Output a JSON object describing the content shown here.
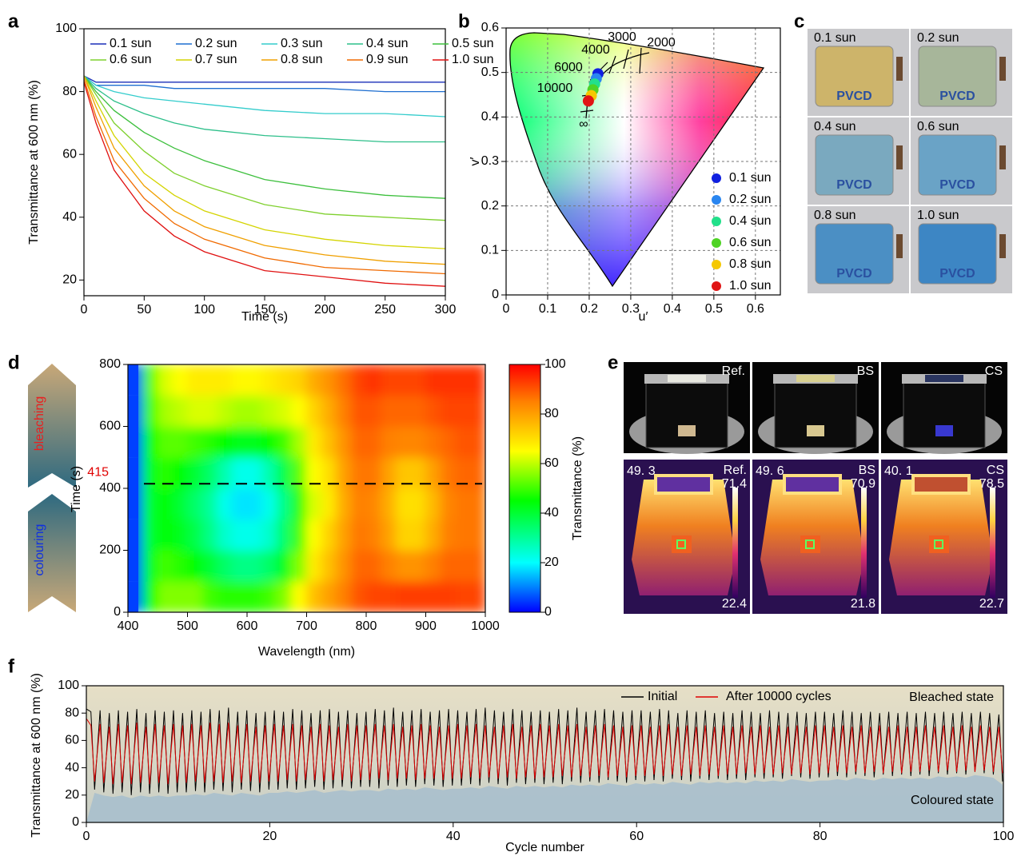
{
  "panel_labels": [
    "a",
    "b",
    "c",
    "d",
    "e",
    "f"
  ],
  "chart_data": [
    {
      "type": "line",
      "x_label": "Time (s)",
      "y_label": "Transmittance at 600 nm (%)",
      "x": [
        0,
        10,
        25,
        50,
        75,
        100,
        150,
        200,
        250,
        300
      ],
      "series": [
        {
          "name": "0.1 sun",
          "color": "#1a2fb8",
          "values": [
            85,
            83,
            83,
            83,
            83,
            83,
            83,
            83,
            83,
            83
          ]
        },
        {
          "name": "0.2 sun",
          "color": "#1f6fd0",
          "values": [
            85,
            82,
            82,
            82,
            81,
            81,
            81,
            81,
            80,
            80
          ]
        },
        {
          "name": "0.3 sun",
          "color": "#33cccc",
          "values": [
            85,
            82,
            80,
            78,
            77,
            76,
            74,
            73,
            73,
            72
          ]
        },
        {
          "name": "0.4 sun",
          "color": "#2dbf8a",
          "values": [
            85,
            81,
            77,
            73,
            70,
            68,
            66,
            65,
            64,
            64
          ]
        },
        {
          "name": "0.5 sun",
          "color": "#3cbf3c",
          "values": [
            85,
            80,
            74,
            67,
            62,
            58,
            52,
            49,
            47,
            46
          ]
        },
        {
          "name": "0.6 sun",
          "color": "#7fd02e",
          "values": [
            85,
            79,
            70,
            61,
            54,
            50,
            44,
            41,
            40,
            39
          ]
        },
        {
          "name": "0.7 sun",
          "color": "#d4d400",
          "values": [
            85,
            77,
            66,
            54,
            47,
            42,
            36,
            33,
            31,
            30
          ]
        },
        {
          "name": "0.8 sun",
          "color": "#f0a000",
          "values": [
            85,
            75,
            62,
            50,
            42,
            37,
            31,
            28,
            26,
            25
          ]
        },
        {
          "name": "0.9 sun",
          "color": "#f06a00",
          "values": [
            84,
            72,
            58,
            46,
            38,
            33,
            27,
            24,
            23,
            22
          ]
        },
        {
          "name": "1.0 sun",
          "color": "#e01010",
          "values": [
            83,
            70,
            55,
            42,
            34,
            29,
            23,
            21,
            19,
            18
          ]
        }
      ],
      "xlim": [
        0,
        300
      ],
      "ylim": [
        15,
        100
      ],
      "xticks": [
        0,
        50,
        100,
        150,
        200,
        250,
        300
      ],
      "yticks": [
        20,
        40,
        60,
        80,
        100
      ],
      "legend": "top"
    },
    {
      "type": "scatter",
      "x_label": "u′",
      "y_label": "v′",
      "series": [
        {
          "name": "0.1 sun",
          "color": "#1020e0",
          "x": [
            0.221
          ],
          "values": [
            0.497
          ]
        },
        {
          "name": "0.2 sun",
          "color": "#2a86f0",
          "x": [
            0.217
          ],
          "values": [
            0.486
          ]
        },
        {
          "name": "0.4 sun",
          "color": "#22e08a",
          "x": [
            0.213
          ],
          "values": [
            0.474
          ]
        },
        {
          "name": "0.6 sun",
          "color": "#4ed324",
          "x": [
            0.209
          ],
          "values": [
            0.461
          ]
        },
        {
          "name": "0.8 sun",
          "color": "#f5c800",
          "x": [
            0.205
          ],
          "values": [
            0.448
          ]
        },
        {
          "name": "1.0 sun",
          "color": "#e01515",
          "x": [
            0.198
          ],
          "values": [
            0.436
          ]
        }
      ],
      "annotations": [
        "3000",
        "2000",
        "4000",
        "6000",
        "10000",
        "∞"
      ],
      "xlim": [
        0,
        0.66
      ],
      "ylim": [
        0,
        0.6
      ],
      "xticks": [
        0,
        0.1,
        0.2,
        0.3,
        0.4,
        0.5,
        0.6
      ],
      "yticks": [
        0,
        0.1,
        0.2,
        0.3,
        0.4,
        0.5,
        0.6
      ],
      "grid": true,
      "legend": "lower right"
    },
    {
      "type": "heatmap",
      "x_label": "Wavelength (nm)",
      "y_label": "Time (s)",
      "x_bins": [
        400,
        425,
        450,
        475,
        500,
        525,
        550,
        575,
        600,
        625,
        650,
        675,
        700,
        725,
        750,
        775,
        800,
        825,
        850,
        875,
        900,
        925,
        950,
        975,
        1000
      ],
      "y_bins": [
        0,
        100,
        200,
        300,
        400,
        500,
        600,
        700,
        800
      ],
      "values": [
        [
          5,
          45,
          55,
          55,
          55,
          50,
          48,
          48,
          48,
          50,
          55,
          65,
          75,
          80,
          85,
          90,
          92,
          92,
          93,
          93,
          93,
          93,
          92,
          92
        ],
        [
          5,
          42,
          50,
          48,
          45,
          40,
          35,
          32,
          32,
          35,
          42,
          55,
          68,
          75,
          82,
          88,
          88,
          85,
          82,
          82,
          85,
          88,
          88,
          88
        ],
        [
          5,
          40,
          45,
          42,
          38,
          32,
          25,
          22,
          22,
          25,
          35,
          50,
          65,
          72,
          80,
          86,
          85,
          80,
          72,
          72,
          78,
          85,
          86,
          86
        ],
        [
          5,
          40,
          45,
          40,
          35,
          30,
          22,
          18,
          18,
          22,
          32,
          48,
          62,
          68,
          78,
          85,
          84,
          78,
          70,
          70,
          76,
          84,
          86,
          86
        ],
        [
          5,
          42,
          48,
          45,
          40,
          35,
          28,
          22,
          22,
          28,
          38,
          52,
          65,
          70,
          80,
          86,
          86,
          80,
          74,
          74,
          80,
          86,
          88,
          88
        ],
        [
          5,
          45,
          52,
          52,
          50,
          48,
          45,
          42,
          42,
          45,
          50,
          58,
          68,
          75,
          82,
          88,
          88,
          85,
          84,
          84,
          86,
          88,
          90,
          90
        ],
        [
          5,
          50,
          58,
          60,
          62,
          62,
          60,
          58,
          58,
          60,
          62,
          65,
          72,
          78,
          85,
          90,
          90,
          88,
          88,
          88,
          90,
          92,
          92,
          92
        ],
        [
          5,
          52,
          62,
          65,
          68,
          68,
          68,
          66,
          66,
          68,
          70,
          72,
          78,
          82,
          87,
          92,
          94,
          92,
          92,
          92,
          94,
          94,
          94,
          94
        ]
      ],
      "xlim": [
        400,
        1000
      ],
      "ylim": [
        0,
        800
      ],
      "xticks": [
        400,
        500,
        600,
        700,
        800,
        900,
        1000
      ],
      "yticks": [
        0,
        200,
        400,
        600,
        800
      ],
      "colorbar": {
        "label": "Transmittance (%)",
        "lim": [
          0,
          100
        ],
        "ticks": [
          0,
          20,
          40,
          60,
          80,
          100
        ]
      },
      "marker_time": 415,
      "side_labels": [
        "bleaching",
        "colouring"
      ]
    },
    {
      "type": "line",
      "x_label": "Cycle number",
      "y_label": "Transmittance at 600 nm (%)",
      "x": [
        0,
        0.5,
        0.9,
        1.5,
        1.9,
        2.5,
        2.9,
        3.5,
        3.9,
        4.5,
        4.9,
        5.5,
        5.9,
        6.5,
        6.9,
        7.5,
        7.9,
        8.5,
        8.9,
        9.5,
        9.9,
        10.5,
        10.9,
        11.5,
        11.9,
        12.5,
        12.9,
        13.5,
        13.9,
        14.5,
        14.9,
        15.5,
        15.9,
        16.5,
        16.9,
        17.5,
        17.9,
        18.5,
        18.9,
        19.5,
        19.9,
        20.5,
        20.9,
        21.5,
        21.9,
        22.5,
        22.9,
        23.5,
        23.9,
        24.5,
        24.9,
        25.5,
        25.9,
        26.5,
        26.9,
        27.5,
        27.9,
        28.5,
        28.9,
        29.5,
        29.9,
        30.5,
        30.9,
        31.5,
        31.9,
        32.5,
        32.9,
        33.5,
        33.9,
        34.5,
        34.9,
        35.5,
        35.9,
        36.5,
        36.9,
        37.5,
        37.9,
        38.5,
        38.9,
        39.5,
        39.9,
        40.5,
        40.9,
        41.5,
        41.9,
        42.5,
        42.9,
        43.5,
        43.9,
        44.5,
        44.9,
        45.5,
        45.9,
        46.5,
        46.9,
        47.5,
        47.9,
        48.5,
        48.9,
        49.5,
        49.9,
        50.5,
        50.9,
        51.5,
        51.9,
        52.5,
        52.9,
        53.5,
        53.9,
        54.5,
        54.9,
        55.5,
        55.9,
        56.5,
        56.9,
        57.5,
        57.9,
        58.5,
        58.9,
        59.5,
        59.9,
        60.5,
        60.9,
        61.5,
        61.9,
        62.5,
        62.9,
        63.5,
        63.9,
        64.5,
        64.9,
        65.5,
        65.9,
        66.5,
        66.9,
        67.5,
        67.9,
        68.5,
        68.9,
        69.5,
        69.9,
        70.5,
        70.9,
        71.5,
        71.9,
        72.5,
        72.9,
        73.5,
        73.9,
        74.5,
        74.9,
        75.5,
        75.9,
        76.5,
        76.9,
        77.5,
        77.9,
        78.5,
        78.9,
        79.5,
        79.9,
        80.5,
        80.9,
        81.5,
        81.9,
        82.5,
        82.9,
        83.5,
        83.9,
        84.5,
        84.9,
        85.5,
        85.9,
        86.5,
        86.9,
        87.5,
        87.9,
        88.5,
        88.9,
        89.5,
        89.9,
        90.5,
        90.9,
        91.5,
        91.9,
        92.5,
        92.9,
        93.5,
        93.9,
        94.5,
        94.9,
        95.5,
        95.9,
        96.5,
        96.9,
        97.5,
        97.9,
        98.5,
        98.9,
        99.5,
        99.9
      ],
      "series": [
        {
          "name": "Initial",
          "color": "#000000",
          "values": [
            83,
            81,
            24,
            82,
            22,
            80,
            21,
            82,
            22,
            81,
            20,
            83,
            22,
            80,
            21,
            82,
            22,
            81,
            21,
            82,
            22,
            80,
            22,
            82,
            23,
            81,
            22,
            83,
            24,
            82,
            23,
            84,
            22,
            81,
            24,
            82,
            23,
            80,
            22,
            81,
            24,
            82,
            24,
            81,
            25,
            83,
            24,
            82,
            25,
            80,
            26,
            82,
            24,
            83,
            25,
            81,
            26,
            82,
            25,
            80,
            26,
            81,
            26,
            83,
            25,
            82,
            27,
            84,
            26,
            81,
            27,
            82,
            26,
            83,
            28,
            81,
            27,
            82,
            26,
            83,
            27,
            82,
            27,
            81,
            28,
            83,
            27,
            84,
            29,
            82,
            28,
            81,
            27,
            83,
            29,
            82,
            28,
            81,
            29,
            82,
            28,
            81,
            29,
            83,
            28,
            82,
            30,
            84,
            29,
            81,
            30,
            82,
            29,
            83,
            31,
            82,
            30,
            81,
            29,
            82,
            31,
            82,
            30,
            81,
            31,
            83,
            30,
            82,
            32,
            80,
            31,
            82,
            30,
            81,
            32,
            82,
            31,
            80,
            32,
            81,
            31,
            80,
            32,
            82,
            31,
            81,
            33,
            80,
            32,
            82,
            33,
            81,
            32,
            80,
            34,
            81,
            33,
            80,
            32,
            81,
            33,
            81,
            33,
            80,
            34,
            82,
            33,
            81,
            35,
            80,
            34,
            81,
            33,
            80,
            35,
            81,
            34,
            80,
            35,
            81,
            34,
            80,
            35,
            81,
            34,
            80,
            36,
            81,
            35,
            80,
            36,
            81,
            35,
            80,
            37,
            81,
            36,
            80,
            35,
            79,
            30
          ]
        },
        {
          "name": "After 10000 cycles",
          "color": "#e00000",
          "values": [
            76,
            71,
            30,
            72,
            29,
            70,
            28,
            72,
            29,
            71,
            28,
            73,
            29,
            70,
            28,
            72,
            29,
            71,
            28,
            72,
            29,
            71,
            29,
            72,
            30,
            71,
            29,
            73,
            30,
            72,
            29,
            73,
            30,
            71,
            29,
            72,
            30,
            70,
            29,
            71,
            30,
            72,
            30,
            71,
            31,
            72,
            30,
            71,
            31,
            70,
            31,
            72,
            30,
            71,
            31,
            70,
            31,
            72,
            30,
            71,
            31,
            71,
            31,
            72,
            32,
            71,
            31,
            72,
            32,
            70,
            32,
            71,
            31,
            72,
            32,
            71,
            32,
            70,
            31,
            71,
            32,
            72,
            32,
            71,
            33,
            72,
            32,
            71,
            33,
            70,
            32,
            71,
            33,
            72,
            32,
            70,
            33,
            71,
            32,
            72,
            33,
            71,
            33,
            72,
            34,
            71,
            33,
            72,
            34,
            70,
            33,
            71,
            34,
            72,
            33,
            71,
            34,
            70,
            33,
            71,
            34,
            71,
            34,
            70,
            35,
            71,
            34,
            72,
            35,
            70,
            34,
            71,
            35,
            70,
            34,
            71,
            35,
            70,
            34,
            71,
            35,
            70,
            35,
            71,
            36,
            70,
            35,
            71,
            36,
            70,
            35,
            71,
            36,
            70,
            35,
            71,
            36,
            70,
            35,
            71,
            36,
            71,
            36,
            70,
            37,
            71,
            36,
            70,
            37,
            71,
            36,
            70,
            37,
            71,
            36,
            70,
            37,
            71,
            36,
            70,
            37,
            70,
            37,
            71,
            38,
            70,
            37,
            71,
            38,
            70,
            37,
            71,
            38,
            70,
            37,
            71,
            38,
            70,
            37,
            70,
            36
          ]
        }
      ],
      "annotations": [
        "Bleached state",
        "Coloured state"
      ],
      "xlim": [
        0,
        100
      ],
      "ylim": [
        0,
        100
      ],
      "xticks": [
        0,
        20,
        40,
        60,
        80,
        100
      ],
      "yticks": [
        0,
        20,
        40,
        60,
        80,
        100
      ],
      "legend": "upper right"
    }
  ],
  "photos_c": {
    "labels": [
      "0.1 sun",
      "0.2 sun",
      "0.4 sun",
      "0.6 sun",
      "0.8 sun",
      "1.0 sun"
    ],
    "logo": "PVCD"
  },
  "photos_e": {
    "labels": [
      "Ref.",
      "BS",
      "CS"
    ],
    "thermal": [
      {
        "label": "Ref.",
        "temp": "49. 3",
        "max": "71.4",
        "min": "22.4"
      },
      {
        "label": "BS",
        "temp": "49. 6",
        "max": "70.9",
        "min": "21.8"
      },
      {
        "label": "CS",
        "temp": "40. 1",
        "max": "78.5",
        "min": "22.7"
      }
    ]
  }
}
